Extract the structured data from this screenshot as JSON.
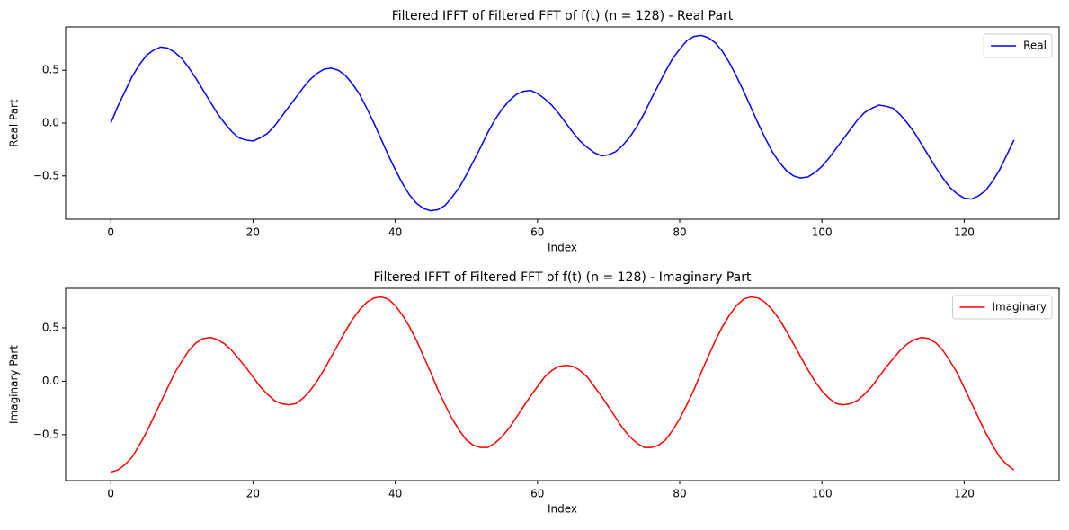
{
  "chart_data": [
    {
      "type": "line",
      "title": "Filtered IFFT of Filtered FFT of f(t) (n = 128) - Real Part",
      "x_label": "Index",
      "y_label": "Real Part",
      "x": [
        0,
        1,
        2,
        3,
        4,
        5,
        6,
        7,
        8,
        9,
        10,
        11,
        12,
        13,
        14,
        15,
        16,
        17,
        18,
        19,
        20,
        21,
        22,
        23,
        24,
        25,
        26,
        27,
        28,
        29,
        30,
        31,
        32,
        33,
        34,
        35,
        36,
        37,
        38,
        39,
        40,
        41,
        42,
        43,
        44,
        45,
        46,
        47,
        48,
        49,
        50,
        51,
        52,
        53,
        54,
        55,
        56,
        57,
        58,
        59,
        60,
        61,
        62,
        63,
        64,
        65,
        66,
        67,
        68,
        69,
        70,
        71,
        72,
        73,
        74,
        75,
        76,
        77,
        78,
        79,
        80,
        81,
        82,
        83,
        84,
        85,
        86,
        87,
        88,
        89,
        90,
        91,
        92,
        93,
        94,
        95,
        96,
        97,
        98,
        99,
        100,
        101,
        102,
        103,
        104,
        105,
        106,
        107,
        108,
        109,
        110,
        111,
        112,
        113,
        114,
        115,
        116,
        117,
        118,
        119,
        120,
        121,
        122,
        123,
        124,
        125,
        126,
        127
      ],
      "series": [
        {
          "name": "Real",
          "color": "#0000ff",
          "values": [
            0,
            0.16,
            0.3,
            0.44,
            0.55,
            0.64,
            0.69,
            0.72,
            0.71,
            0.67,
            0.61,
            0.52,
            0.42,
            0.31,
            0.2,
            0.09,
            0,
            -0.08,
            -0.14,
            -0.16,
            -0.17,
            -0.14,
            -0.1,
            -0.03,
            0.06,
            0.15,
            0.24,
            0.33,
            0.41,
            0.47,
            0.51,
            0.52,
            0.5,
            0.45,
            0.37,
            0.27,
            0.14,
            0,
            -0.15,
            -0.3,
            -0.44,
            -0.57,
            -0.68,
            -0.76,
            -0.81,
            -0.83,
            -0.82,
            -0.78,
            -0.7,
            -0.61,
            -0.49,
            -0.36,
            -0.23,
            -0.09,
            0.03,
            0.13,
            0.21,
            0.27,
            0.3,
            0.31,
            0.28,
            0.23,
            0.17,
            0.09,
            0,
            -0.09,
            -0.17,
            -0.23,
            -0.28,
            -0.31,
            -0.3,
            -0.27,
            -0.21,
            -0.13,
            -0.03,
            0.09,
            0.23,
            0.36,
            0.49,
            0.61,
            0.7,
            0.78,
            0.82,
            0.83,
            0.81,
            0.76,
            0.68,
            0.57,
            0.44,
            0.3,
            0.15,
            0,
            -0.14,
            -0.27,
            -0.37,
            -0.45,
            -0.5,
            -0.52,
            -0.51,
            -0.47,
            -0.41,
            -0.33,
            -0.24,
            -0.15,
            -0.06,
            0.03,
            0.1,
            0.14,
            0.17,
            0.16,
            0.14,
            0.08,
            0,
            -0.09,
            -0.2,
            -0.31,
            -0.42,
            -0.52,
            -0.61,
            -0.67,
            -0.71,
            -0.72,
            -0.69,
            -0.64,
            -0.55,
            -0.44,
            -0.3,
            -0.16
          ]
        }
      ],
      "xlim": [
        -6.35,
        133.35
      ],
      "xticks": [
        0,
        20,
        40,
        60,
        80,
        100,
        120
      ],
      "ylim": [
        -0.91,
        0.91
      ],
      "yticks": [
        {
          "value": -0.5,
          "label": "−0.5"
        },
        {
          "value": 0,
          "label": "0.0"
        },
        0.5
      ],
      "legend": "upper right",
      "grid": false
    },
    {
      "type": "line",
      "title": "Filtered IFFT of Filtered FFT of f(t) (n = 128) - Imaginary Part",
      "x_label": "Index",
      "y_label": "Imaginary Part",
      "x": [
        0,
        1,
        2,
        3,
        4,
        5,
        6,
        7,
        8,
        9,
        10,
        11,
        12,
        13,
        14,
        15,
        16,
        17,
        18,
        19,
        20,
        21,
        22,
        23,
        24,
        25,
        26,
        27,
        28,
        29,
        30,
        31,
        32,
        33,
        34,
        35,
        36,
        37,
        38,
        39,
        40,
        41,
        42,
        43,
        44,
        45,
        46,
        47,
        48,
        49,
        50,
        51,
        52,
        53,
        54,
        55,
        56,
        57,
        58,
        59,
        60,
        61,
        62,
        63,
        64,
        65,
        66,
        67,
        68,
        69,
        70,
        71,
        72,
        73,
        74,
        75,
        76,
        77,
        78,
        79,
        80,
        81,
        82,
        83,
        84,
        85,
        86,
        87,
        88,
        89,
        90,
        91,
        92,
        93,
        94,
        95,
        96,
        97,
        98,
        99,
        100,
        101,
        102,
        103,
        104,
        105,
        106,
        107,
        108,
        109,
        110,
        111,
        112,
        113,
        114,
        115,
        116,
        117,
        118,
        119,
        120,
        121,
        122,
        123,
        124,
        125,
        126,
        127
      ],
      "series": [
        {
          "name": "Imaginary",
          "color": "#ff0000",
          "values": [
            -0.85,
            -0.83,
            -0.78,
            -0.71,
            -0.6,
            -0.48,
            -0.34,
            -0.2,
            -0.06,
            0.08,
            0.19,
            0.29,
            0.36,
            0.4,
            0.41,
            0.39,
            0.35,
            0.29,
            0.21,
            0.13,
            0.04,
            -0.05,
            -0.12,
            -0.18,
            -0.21,
            -0.22,
            -0.21,
            -0.16,
            -0.09,
            0,
            0.11,
            0.23,
            0.35,
            0.47,
            0.58,
            0.67,
            0.74,
            0.78,
            0.79,
            0.77,
            0.71,
            0.62,
            0.51,
            0.38,
            0.23,
            0.08,
            -0.08,
            -0.22,
            -0.35,
            -0.46,
            -0.55,
            -0.6,
            -0.62,
            -0.62,
            -0.58,
            -0.52,
            -0.44,
            -0.34,
            -0.24,
            -0.14,
            -0.05,
            0.04,
            0.1,
            0.14,
            0.15,
            0.14,
            0.1,
            0.04,
            -0.05,
            -0.14,
            -0.24,
            -0.34,
            -0.44,
            -0.52,
            -0.58,
            -0.62,
            -0.62,
            -0.6,
            -0.55,
            -0.46,
            -0.35,
            -0.22,
            -0.08,
            0.08,
            0.23,
            0.38,
            0.51,
            0.62,
            0.71,
            0.77,
            0.79,
            0.78,
            0.74,
            0.67,
            0.58,
            0.47,
            0.35,
            0.23,
            0.11,
            0,
            -0.09,
            -0.16,
            -0.21,
            -0.22,
            -0.21,
            -0.18,
            -0.12,
            -0.05,
            0.04,
            0.13,
            0.21,
            0.29,
            0.35,
            0.39,
            0.41,
            0.4,
            0.36,
            0.29,
            0.19,
            0.08,
            -0.06,
            -0.2,
            -0.34,
            -0.48,
            -0.6,
            -0.71,
            -0.78,
            -0.83
          ]
        }
      ],
      "xlim": [
        -6.35,
        133.35
      ],
      "xticks": [
        0,
        20,
        40,
        60,
        80,
        100,
        120
      ],
      "ylim": [
        -0.93,
        0.87
      ],
      "yticks": [
        {
          "value": -0.5,
          "label": "−0.5"
        },
        {
          "value": 0,
          "label": "0.0"
        },
        0.5
      ],
      "legend": "upper right",
      "grid": false
    }
  ]
}
